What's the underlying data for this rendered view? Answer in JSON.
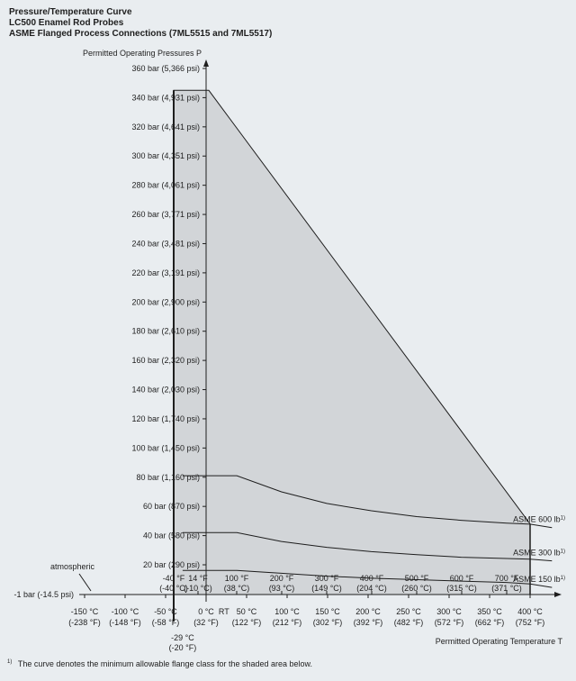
{
  "titles": [
    "Pressure/Temperature Curve",
    "LC500 Enamel Rod Probes",
    "ASME Flanged Process Connections (7ML5515 and 7ML5517)"
  ],
  "footnote": {
    "marker": "1)",
    "text": "The curve denotes the minimum allowable flange class for the shaded area below."
  },
  "chart_data": {
    "type": "area",
    "ylabel": "Permitted Operating Pressures P",
    "xlabel": "Permitted Operating Temperature T",
    "ylim": [
      -1,
      360
    ],
    "y_ticks": [
      {
        "value": 360,
        "label": "360 bar (5,366 psi)"
      },
      {
        "value": 340,
        "label": "340 bar (4,931 psi)"
      },
      {
        "value": 320,
        "label": "320 bar (4,641 psi)"
      },
      {
        "value": 300,
        "label": "300 bar (4,351 psi)"
      },
      {
        "value": 280,
        "label": "280 bar (4,061 psi)"
      },
      {
        "value": 260,
        "label": "260 bar (3,771 psi)"
      },
      {
        "value": 240,
        "label": "240 bar (3,481 psi)"
      },
      {
        "value": 220,
        "label": "220 bar (3,191 psi)"
      },
      {
        "value": 200,
        "label": "200 bar (2,900 psi)"
      },
      {
        "value": 180,
        "label": "180 bar (2,610 psi)"
      },
      {
        "value": 160,
        "label": "160 bar (2,320 psi)"
      },
      {
        "value": 140,
        "label": "140 bar (2,030 psi)"
      },
      {
        "value": 120,
        "label": "120 bar (1,740 psi)"
      },
      {
        "value": 100,
        "label": "100 bar (1,450 psi)"
      },
      {
        "value": 80,
        "label": "80 bar (1,160 psi)"
      },
      {
        "value": 60,
        "label": "60 bar (870 psi)"
      },
      {
        "value": 40,
        "label": "40 bar (580 psi)"
      },
      {
        "value": 20,
        "label": "20 bar (290 psi)"
      },
      {
        "value": -1,
        "label": "-1 bar (-14.5 psi)"
      }
    ],
    "atmospheric_label": "atmospheric",
    "x_ticks_celsius": [
      {
        "value": -150,
        "label": "-150 °C",
        "sub": "(-238 °F)"
      },
      {
        "value": -100,
        "label": "-100 °C",
        "sub": "(-148 °F)"
      },
      {
        "value": -50,
        "label": "-50 °C",
        "sub": "(-58 °F)"
      },
      {
        "value": 0,
        "label": "0 °C",
        "sub": "(32 °F)"
      },
      {
        "value": 50,
        "label": "50 °C",
        "sub": "(122 °F)"
      },
      {
        "value": 100,
        "label": "100 °C",
        "sub": "(212 °F)"
      },
      {
        "value": 150,
        "label": "150 °C",
        "sub": "(302 °F)"
      },
      {
        "value": 200,
        "label": "200 °C",
        "sub": "(392 °F)"
      },
      {
        "value": 250,
        "label": "250 °C",
        "sub": "(482 °F)"
      },
      {
        "value": 300,
        "label": "300 °C",
        "sub": "(572 °F)"
      },
      {
        "value": 350,
        "label": "350 °C",
        "sub": "(662 °F)"
      },
      {
        "value": 400,
        "label": "400 °C",
        "sub": "(752 °F)"
      }
    ],
    "x_ticks_fahrenheit": [
      {
        "value": -40,
        "label": "-40 °F",
        "sub": "(-40 °C)"
      },
      {
        "value": 14,
        "label": "14 °F",
        "sub": "(-10 °C)"
      },
      {
        "value": 100,
        "label": "100 °F",
        "sub": "(38 °C)"
      },
      {
        "value": 200,
        "label": "200 °F",
        "sub": "(93 °C)"
      },
      {
        "value": 300,
        "label": "300 °F",
        "sub": "(149 °C)"
      },
      {
        "value": 400,
        "label": "400 °F",
        "sub": "(204 °C)"
      },
      {
        "value": 500,
        "label": "500 °F",
        "sub": "(260 °C)"
      },
      {
        "value": 600,
        "label": "600 °F",
        "sub": "(315 °C)"
      },
      {
        "value": 700,
        "label": "700 °F",
        "sub": "(371 °C)"
      }
    ],
    "rt_label": "RT",
    "min_temp_label": {
      "value": -29,
      "label": "-29 °C",
      "sub": "(-20 °F)"
    },
    "shaded_region": {
      "x": [
        -40,
        -40,
        38,
        400,
        400
      ],
      "y": [
        -1,
        345,
        345,
        48,
        -1
      ]
    },
    "series": [
      {
        "name": "ASME 600 lb",
        "marker": "1)",
        "x": [
          -29,
          38,
          93,
          149,
          204,
          260,
          315,
          371,
          400,
          427
        ],
        "y": [
          81,
          81,
          70,
          62,
          57,
          53,
          50.5,
          48.5,
          47.8,
          45.5
        ]
      },
      {
        "name": "ASME 300 lb",
        "marker": "1)",
        "x": [
          -29,
          38,
          93,
          149,
          204,
          260,
          315,
          371,
          400,
          427
        ],
        "y": [
          42,
          42,
          36,
          32,
          29,
          27,
          25.2,
          24.3,
          23.9,
          22.7
        ]
      },
      {
        "name": "ASME 150 lb",
        "marker": "1)",
        "x": [
          -29,
          38,
          93,
          149,
          204,
          260,
          315,
          371,
          400,
          427
        ],
        "y": [
          16,
          16,
          14,
          12,
          10.5,
          9.5,
          8.5,
          7.5,
          6.5,
          4
        ]
      }
    ],
    "grid": false,
    "legend": "inline-right"
  }
}
